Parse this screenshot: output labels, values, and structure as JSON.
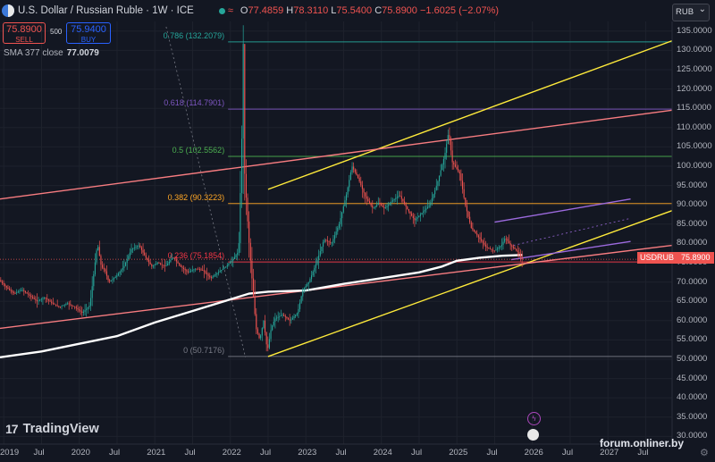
{
  "header": {
    "title": "U.S. Dollar / Russian Ruble · 1W · ICE",
    "wave": "≈",
    "o_label": "O",
    "o_value": "77.4859",
    "h_label": "H",
    "h_value": "78.3110",
    "l_label": "L",
    "l_value": "75.5400",
    "c_label": "C",
    "c_value": "75.8900",
    "change": "−1.6025 (−2.07%)"
  },
  "trade": {
    "sell_price": "75.8900",
    "sell_label": "SELL",
    "qty": "500",
    "buy_price": "75.9400",
    "buy_label": "BUY"
  },
  "indicator": {
    "label": "SMA 377 close",
    "value": "77.0079"
  },
  "currency": "RUB",
  "price_tag": {
    "symbol": "USDRUB",
    "price": "75.8900"
  },
  "branding": {
    "logo_mark": "17",
    "logo_text": "TradingView",
    "watermark": "forum.onliner.by"
  },
  "events": {
    "a": "ϟ",
    "b": "🇺🇸"
  },
  "colors": {
    "background": "#131722",
    "up": "#26a69a",
    "down": "#ef5350",
    "sma": "#ffffff",
    "channel": "#ffeb3b",
    "trend": "#f77c80",
    "purple": "#9c6ade",
    "fib_0786": "#26a69a",
    "fib_0618": "#7e57c2",
    "fib_05": "#4caf50",
    "fib_0382": "#ffa726",
    "fib_0236": "#f23645",
    "fib_0": "#787b86"
  },
  "chart_data": {
    "type": "line",
    "title": "U.S. Dollar / Russian Ruble · 1W · ICE",
    "y_ticks": [
      "135.0000",
      "130.0000",
      "125.0000",
      "120.0000",
      "115.0000",
      "110.0000",
      "105.0000",
      "100.0000",
      "95.0000",
      "90.0000",
      "85.0000",
      "80.0000",
      "75.0000",
      "70.0000",
      "65.0000",
      "60.0000",
      "55.0000",
      "50.0000",
      "45.0000",
      "40.0000",
      "35.0000",
      "30.0000"
    ],
    "y_tick_values": [
      135,
      130,
      125,
      120,
      115,
      110,
      105,
      100,
      95,
      90,
      85,
      80,
      75,
      70,
      65,
      60,
      55,
      50,
      45,
      40,
      35,
      30
    ],
    "ylim": [
      28,
      137.5
    ],
    "x_ticks": [
      "2019",
      "Jul",
      "2020",
      "Jul",
      "2021",
      "Jul",
      "2022",
      "Jul",
      "2023",
      "Jul",
      "2024",
      "Jul",
      "2025",
      "Jul",
      "2026",
      "Jul",
      "2027",
      "Jul"
    ],
    "x_tick_times": [
      2019.0,
      2019.5,
      2020.0,
      2020.5,
      2021.0,
      2021.5,
      2022.0,
      2022.5,
      2023.0,
      2023.5,
      2024.0,
      2024.5,
      2025.0,
      2025.5,
      2026.0,
      2026.5,
      2027.0,
      2027.5
    ],
    "xlim": [
      2018.95,
      2027.85
    ],
    "fib_levels": [
      {
        "label": "0.786 (132.2079)",
        "value": 132.2079,
        "color": "#26a69a"
      },
      {
        "label": "0.618 (114.7901)",
        "value": 114.7901,
        "color": "#7e57c2"
      },
      {
        "label": "0.5 (102.5562)",
        "value": 102.5562,
        "color": "#4caf50"
      },
      {
        "label": "0.382 (90.3223)",
        "value": 90.3223,
        "color": "#ffa726"
      },
      {
        "label": "0.236 (75.1854)",
        "value": 75.1854,
        "color": "#f23645"
      },
      {
        "label": "0 (50.7176)",
        "value": 50.7176,
        "color": "#787b86"
      }
    ],
    "price_series": [
      [
        2018.95,
        70.5
      ],
      [
        2019.05,
        68.5
      ],
      [
        2019.15,
        67.0
      ],
      [
        2019.25,
        68.0
      ],
      [
        2019.35,
        66.5
      ],
      [
        2019.45,
        65.0
      ],
      [
        2019.55,
        66.0
      ],
      [
        2019.65,
        64.5
      ],
      [
        2019.75,
        63.5
      ],
      [
        2019.85,
        64.5
      ],
      [
        2019.95,
        63.5
      ],
      [
        2020.05,
        62.0
      ],
      [
        2020.15,
        64.0
      ],
      [
        2020.2,
        72.0
      ],
      [
        2020.25,
        80.0
      ],
      [
        2020.3,
        74.0
      ],
      [
        2020.35,
        73.0
      ],
      [
        2020.4,
        70.0
      ],
      [
        2020.5,
        71.5
      ],
      [
        2020.6,
        74.0
      ],
      [
        2020.7,
        78.5
      ],
      [
        2020.8,
        79.5
      ],
      [
        2020.9,
        76.0
      ],
      [
        2020.97,
        74.0
      ],
      [
        2021.05,
        75.0
      ],
      [
        2021.15,
        74.0
      ],
      [
        2021.25,
        76.5
      ],
      [
        2021.35,
        74.0
      ],
      [
        2021.45,
        72.5
      ],
      [
        2021.55,
        73.5
      ],
      [
        2021.65,
        73.0
      ],
      [
        2021.75,
        71.0
      ],
      [
        2021.85,
        72.5
      ],
      [
        2021.95,
        74.0
      ],
      [
        2022.05,
        76.0
      ],
      [
        2022.12,
        78.0
      ],
      [
        2022.16,
        105.0
      ],
      [
        2022.18,
        133.0
      ],
      [
        2022.2,
        98.0
      ],
      [
        2022.25,
        82.0
      ],
      [
        2022.3,
        70.0
      ],
      [
        2022.35,
        58.0
      ],
      [
        2022.4,
        55.0
      ],
      [
        2022.45,
        60.0
      ],
      [
        2022.5,
        52.0
      ],
      [
        2022.55,
        58.0
      ],
      [
        2022.6,
        60.5
      ],
      [
        2022.7,
        61.5
      ],
      [
        2022.8,
        60.0
      ],
      [
        2022.9,
        62.0
      ],
      [
        2022.97,
        68.0
      ],
      [
        2023.05,
        70.0
      ],
      [
        2023.15,
        75.0
      ],
      [
        2023.25,
        81.0
      ],
      [
        2023.35,
        80.0
      ],
      [
        2023.45,
        85.0
      ],
      [
        2023.55,
        93.0
      ],
      [
        2023.62,
        100.0
      ],
      [
        2023.7,
        97.0
      ],
      [
        2023.8,
        92.0
      ],
      [
        2023.9,
        89.0
      ],
      [
        2023.97,
        90.5
      ],
      [
        2024.05,
        89.0
      ],
      [
        2024.15,
        91.0
      ],
      [
        2024.25,
        92.5
      ],
      [
        2024.35,
        89.0
      ],
      [
        2024.45,
        86.0
      ],
      [
        2024.55,
        88.0
      ],
      [
        2024.65,
        90.0
      ],
      [
        2024.75,
        95.5
      ],
      [
        2024.85,
        103.0
      ],
      [
        2024.9,
        109.0
      ],
      [
        2024.95,
        101.0
      ],
      [
        2025.05,
        98.0
      ],
      [
        2025.12,
        90.0
      ],
      [
        2025.2,
        84.0
      ],
      [
        2025.3,
        81.5
      ],
      [
        2025.4,
        79.0
      ],
      [
        2025.5,
        78.0
      ],
      [
        2025.6,
        79.5
      ],
      [
        2025.65,
        81.5
      ],
      [
        2025.72,
        79.5
      ],
      [
        2025.78,
        78.5
      ],
      [
        2025.83,
        77.5
      ],
      [
        2025.87,
        75.89
      ]
    ],
    "sma_series": [
      [
        2018.95,
        50.5
      ],
      [
        2019.5,
        52.0
      ],
      [
        2020.0,
        54.0
      ],
      [
        2020.5,
        56.0
      ],
      [
        2021.0,
        59.5
      ],
      [
        2021.5,
        62.5
      ],
      [
        2022.0,
        65.5
      ],
      [
        2022.25,
        67.0
      ],
      [
        2022.5,
        67.5
      ],
      [
        2023.0,
        67.8
      ],
      [
        2023.5,
        69.5
      ],
      [
        2024.0,
        71.0
      ],
      [
        2024.5,
        72.5
      ],
      [
        2024.8,
        74.0
      ],
      [
        2025.0,
        75.5
      ],
      [
        2025.3,
        76.3
      ],
      [
        2025.6,
        76.8
      ],
      [
        2025.87,
        77.0079
      ]
    ],
    "drawn_lines": [
      {
        "name": "channel-upper",
        "color": "#ffeb3b",
        "points": [
          [
            2022.5,
            94.0
          ],
          [
            2027.85,
            132.5
          ]
        ]
      },
      {
        "name": "channel-lower",
        "color": "#ffeb3b",
        "points": [
          [
            2022.5,
            50.7
          ],
          [
            2027.85,
            88.5
          ]
        ]
      },
      {
        "name": "trendline-upper",
        "color": "#f77c80",
        "points": [
          [
            2018.95,
            91.5
          ],
          [
            2027.85,
            114.5
          ]
        ]
      },
      {
        "name": "trendline-lower",
        "color": "#f77c80",
        "points": [
          [
            2018.95,
            58.0
          ],
          [
            2027.85,
            79.5
          ]
        ]
      },
      {
        "name": "purple-upper",
        "color": "#9c6ade",
        "points": [
          [
            2025.5,
            85.5
          ],
          [
            2027.3,
            91.5
          ]
        ]
      },
      {
        "name": "purple-lower",
        "color": "#9c6ade",
        "points": [
          [
            2025.72,
            75.8
          ],
          [
            2027.3,
            80.5
          ]
        ]
      }
    ]
  }
}
